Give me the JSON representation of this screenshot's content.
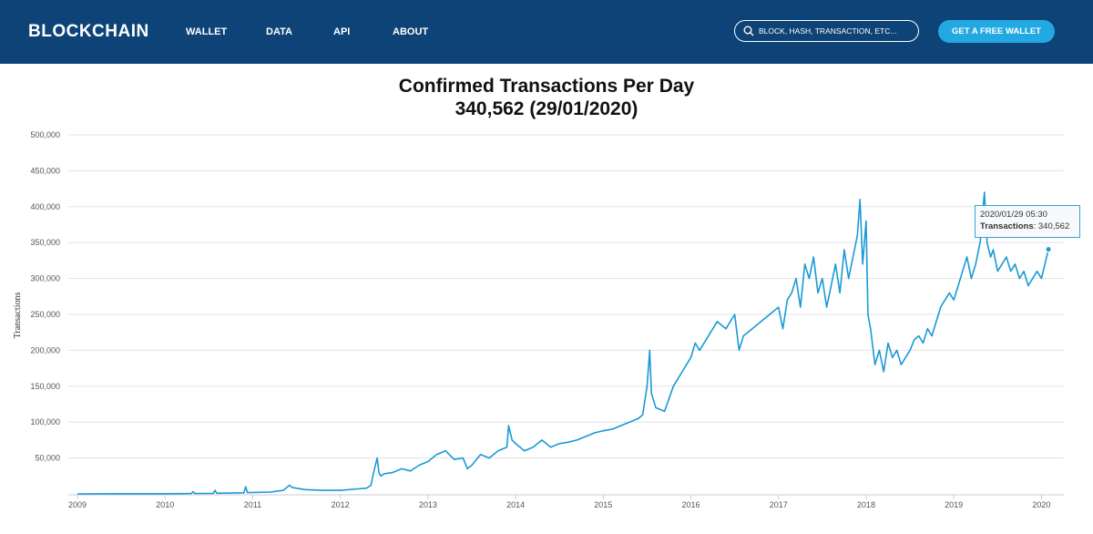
{
  "header": {
    "logo": "BLOCKCHAIN",
    "nav": [
      "WALLET",
      "DATA",
      "API",
      "ABOUT"
    ],
    "search_placeholder": "BLOCK, HASH, TRANSACTION, ETC...",
    "cta_label": "GET A FREE WALLET",
    "bg_color": "#0e4377",
    "cta_color": "#23a9e1"
  },
  "tooltip": {
    "date": "2020/01/29 05:30",
    "label": "Transactions",
    "value": "340,562"
  },
  "chart_data": {
    "type": "line",
    "title": "Confirmed Transactions Per Day",
    "subtitle": "340,562 (29/01/2020)",
    "ylabel": "Transactions",
    "xlabel": "",
    "ylim": [
      0,
      500000
    ],
    "xlim": [
      2009.0,
      2020.1
    ],
    "x_ticks": [
      "2009",
      "2010",
      "2011",
      "2012",
      "2013",
      "2014",
      "2015",
      "2016",
      "2017",
      "2018",
      "2019",
      "2020"
    ],
    "y_ticks": [
      "50,000",
      "100,000",
      "150,000",
      "200,000",
      "250,000",
      "300,000",
      "350,000",
      "400,000",
      "450,000",
      "500,000"
    ],
    "grid": true,
    "line_color": "#1a9ad6",
    "series": [
      {
        "x": [
          2009.0,
          2009.5,
          2010.0,
          2010.3,
          2010.32,
          2010.34,
          2010.55,
          2010.57,
          2010.59,
          2010.9,
          2010.92,
          2010.94,
          2011.2,
          2011.35,
          2011.42,
          2011.45,
          2011.6,
          2011.8,
          2012.0,
          2012.2,
          2012.3,
          2012.35,
          2012.38,
          2012.42,
          2012.44,
          2012.46,
          2012.5,
          2012.6,
          2012.7,
          2012.8,
          2012.9,
          2013.0,
          2013.1,
          2013.2,
          2013.3,
          2013.4,
          2013.45,
          2013.5,
          2013.6,
          2013.7,
          2013.8,
          2013.9,
          2013.92,
          2013.96,
          2014.0,
          2014.1,
          2014.2,
          2014.3,
          2014.4,
          2014.5,
          2014.6,
          2014.7,
          2014.8,
          2014.9,
          2015.0,
          2015.1,
          2015.2,
          2015.3,
          2015.4,
          2015.45,
          2015.5,
          2015.53,
          2015.55,
          2015.6,
          2015.7,
          2015.8,
          2015.9,
          2016.0,
          2016.05,
          2016.1,
          2016.2,
          2016.3,
          2016.4,
          2016.5,
          2016.55,
          2016.6,
          2016.7,
          2016.8,
          2016.9,
          2017.0,
          2017.05,
          2017.1,
          2017.15,
          2017.2,
          2017.25,
          2017.3,
          2017.35,
          2017.4,
          2017.45,
          2017.5,
          2017.55,
          2017.6,
          2017.65,
          2017.7,
          2017.75,
          2017.8,
          2017.85,
          2017.9,
          2017.93,
          2017.96,
          2018.0,
          2018.02,
          2018.05,
          2018.1,
          2018.15,
          2018.2,
          2018.25,
          2018.3,
          2018.35,
          2018.4,
          2018.45,
          2018.5,
          2018.55,
          2018.6,
          2018.65,
          2018.7,
          2018.75,
          2018.8,
          2018.85,
          2018.9,
          2018.95,
          2019.0,
          2019.05,
          2019.1,
          2019.15,
          2019.2,
          2019.25,
          2019.3,
          2019.35,
          2019.38,
          2019.42,
          2019.45,
          2019.5,
          2019.55,
          2019.6,
          2019.65,
          2019.7,
          2019.75,
          2019.8,
          2019.85,
          2019.9,
          2019.95,
          2020.0,
          2020.04,
          2020.08
        ],
        "y": [
          0,
          200,
          300,
          500,
          3000,
          600,
          800,
          5000,
          900,
          1500,
          10000,
          1800,
          2500,
          5000,
          12000,
          9000,
          6000,
          5000,
          5000,
          7000,
          8000,
          12000,
          30000,
          50000,
          30000,
          25000,
          28000,
          30000,
          35000,
          32000,
          40000,
          45000,
          55000,
          60000,
          48000,
          50000,
          35000,
          40000,
          55000,
          50000,
          60000,
          65000,
          95000,
          75000,
          70000,
          60000,
          65000,
          75000,
          65000,
          70000,
          72000,
          75000,
          80000,
          85000,
          88000,
          90000,
          95000,
          100000,
          105000,
          110000,
          150000,
          200000,
          140000,
          120000,
          115000,
          150000,
          170000,
          190000,
          210000,
          200000,
          220000,
          240000,
          230000,
          250000,
          200000,
          220000,
          230000,
          240000,
          250000,
          260000,
          230000,
          270000,
          280000,
          300000,
          260000,
          320000,
          300000,
          330000,
          280000,
          300000,
          260000,
          290000,
          320000,
          280000,
          340000,
          300000,
          330000,
          360000,
          410000,
          320000,
          380000,
          250000,
          230000,
          180000,
          200000,
          170000,
          210000,
          190000,
          200000,
          180000,
          190000,
          200000,
          215000,
          220000,
          210000,
          230000,
          220000,
          240000,
          260000,
          270000,
          280000,
          270000,
          290000,
          310000,
          330000,
          300000,
          320000,
          350000,
          420000,
          350000,
          330000,
          340000,
          310000,
          320000,
          330000,
          310000,
          320000,
          300000,
          310000,
          290000,
          300000,
          310000,
          300000,
          320000,
          340562
        ]
      }
    ]
  }
}
